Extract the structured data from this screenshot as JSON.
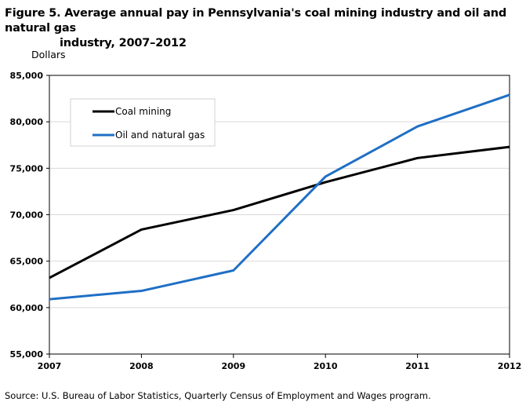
{
  "figure": {
    "title_line1": "Figure 5. Average annual pay in Pennsylvania's  coal mining industry and oil and natural gas",
    "title_line2": "industry, 2007–2012",
    "source": "Source:  U.S. Bureau of Labor Statistics,  Quarterly Census of Employment  and Wages program."
  },
  "chart_data": {
    "type": "line",
    "title": "Figure 5. Average annual pay in Pennsylvania's  coal mining industry and oil and natural gas industry, 2007–2012",
    "xlabel": "",
    "ylabel": "Dollars",
    "x": [
      2007,
      2008,
      2009,
      2010,
      2011,
      2012
    ],
    "x_tick_labels": [
      "2007",
      "2008",
      "2009",
      "2010",
      "2011",
      "2012"
    ],
    "ylim": [
      55000,
      85000
    ],
    "y_ticks": [
      55000,
      60000,
      65000,
      70000,
      75000,
      80000,
      85000
    ],
    "y_tick_labels": [
      "55,000",
      "60,000",
      "65,000",
      "70,000",
      "75,000",
      "80,000",
      "85,000"
    ],
    "grid": true,
    "legend_position": "top-left",
    "series": [
      {
        "name": "Coal mining",
        "color": "#000000",
        "values": [
          63200,
          68400,
          70500,
          73500,
          76100,
          77300
        ]
      },
      {
        "name": "Oil and natural gas",
        "color": "#1f6fc5",
        "values": [
          60900,
          61800,
          64000,
          74100,
          79500,
          82900
        ]
      }
    ]
  }
}
